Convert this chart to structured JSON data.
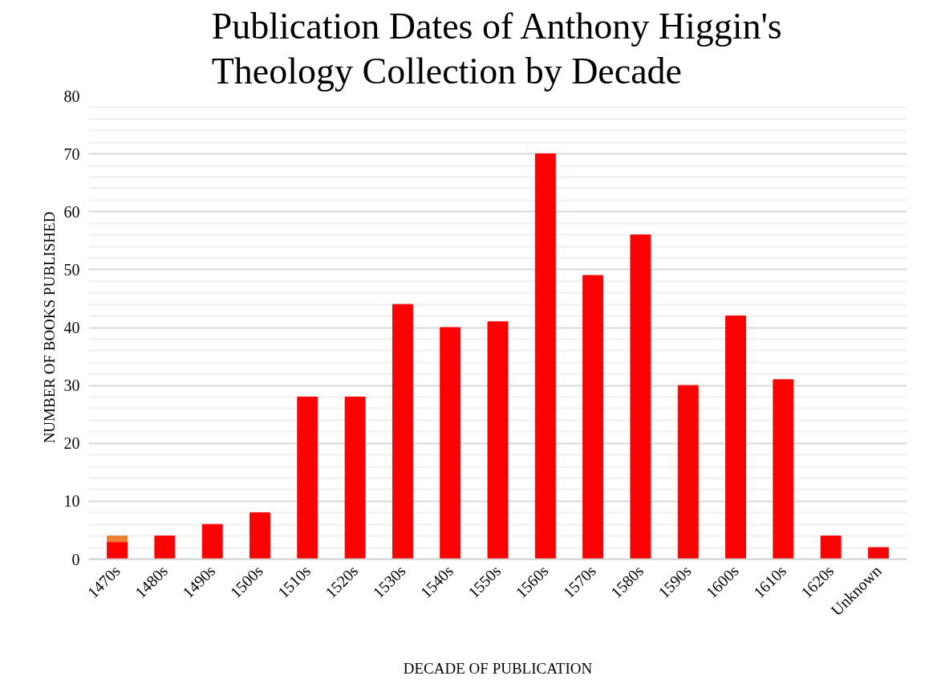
{
  "chart_data": {
    "type": "bar",
    "stacked": true,
    "title": "Publication Dates of Anthony Higgin's Theology Collection by Decade",
    "xlabel": "DECADE OF PUBLICATION",
    "ylabel": "NUMBER OF BOOKS PUBLISHED",
    "categories": [
      "1470s",
      "1480s",
      "1490s",
      "1500s",
      "1510s",
      "1520s",
      "1530s",
      "1540s",
      "1550s",
      "1560s",
      "1570s",
      "1580s",
      "1590s",
      "1600s",
      "1610s",
      "1620s",
      "Unknown"
    ],
    "series": [
      {
        "color": "#ff0000",
        "values": [
          3,
          4,
          6,
          8,
          28,
          28,
          44,
          40,
          41,
          70,
          49,
          56,
          30,
          42,
          31,
          4,
          2
        ]
      },
      {
        "color": "#ed7d31",
        "values": [
          1,
          null,
          null,
          null,
          null,
          null,
          null,
          null,
          null,
          null,
          null,
          null,
          null,
          null,
          null,
          null,
          null
        ]
      }
    ],
    "ylim": [
      0,
      80
    ],
    "yticks": [
      0,
      10,
      20,
      30,
      40,
      50,
      60,
      70,
      80
    ],
    "grid": "y"
  }
}
